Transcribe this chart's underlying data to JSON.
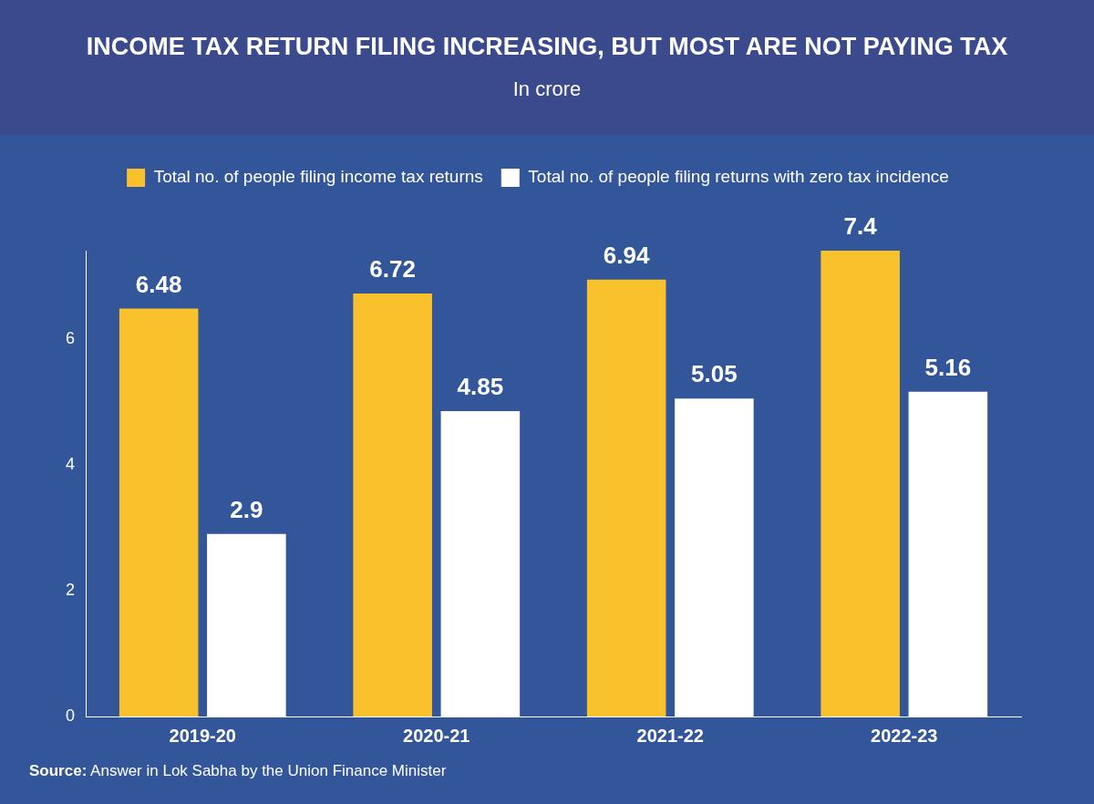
{
  "chart_data": {
    "type": "bar",
    "title": "INCOME TAX RETURN FILING INCREASING, BUT MOST ARE NOT PAYING TAX",
    "subtitle": "In crore",
    "categories": [
      "2019-20",
      "2020-21",
      "2021-22",
      "2022-23"
    ],
    "series": [
      {
        "name": "Total no. of people filing income tax returns",
        "color": "#f9c12b",
        "values": [
          6.48,
          6.72,
          6.94,
          7.4
        ]
      },
      {
        "name": "Total no. of people filing returns with zero tax incidence",
        "color": "#ffffff",
        "values": [
          2.9,
          4.85,
          5.05,
          5.16
        ]
      }
    ],
    "ylim": [
      0,
      7.4
    ],
    "yticks": [
      0,
      2,
      4,
      6
    ],
    "grid": false,
    "legend": "top",
    "data_labels": true,
    "annotations": [
      "Source: Answer in Lok Sabha by the Union Finance Minister"
    ]
  }
}
